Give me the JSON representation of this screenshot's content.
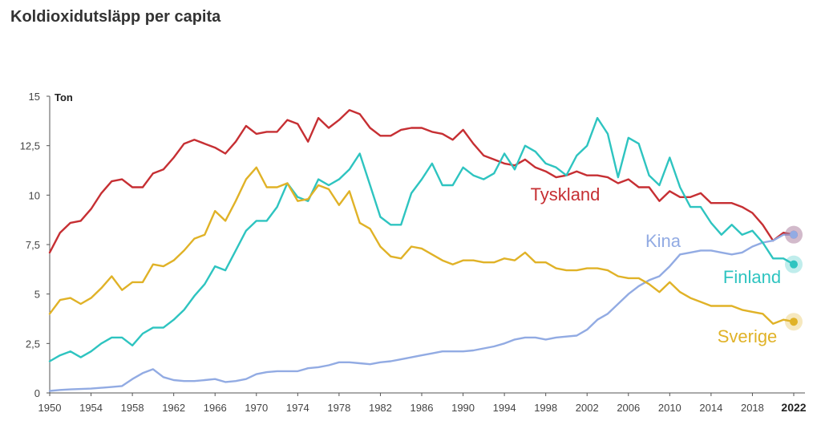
{
  "title": "Koldioxidutsläpp per capita",
  "chart_data": {
    "type": "line",
    "title": "Koldioxidutsläpp per capita",
    "ylabel": "Ton",
    "xlim": [
      1950,
      2022
    ],
    "ylim": [
      0,
      15
    ],
    "y_ticks": [
      {
        "value": 0,
        "label": "0"
      },
      {
        "value": 2.5,
        "label": "2,5"
      },
      {
        "value": 5,
        "label": "5"
      },
      {
        "value": 7.5,
        "label": "7,5"
      },
      {
        "value": 10,
        "label": "10"
      },
      {
        "value": 12.5,
        "label": "12,5"
      },
      {
        "value": 15,
        "label": "15"
      }
    ],
    "x_ticks": [
      {
        "value": 1950,
        "label": "1950"
      },
      {
        "value": 1954,
        "label": "1954"
      },
      {
        "value": 1958,
        "label": "1958"
      },
      {
        "value": 1962,
        "label": "1962"
      },
      {
        "value": 1966,
        "label": "1966"
      },
      {
        "value": 1970,
        "label": "1970"
      },
      {
        "value": 1974,
        "label": "1974"
      },
      {
        "value": 1978,
        "label": "1978"
      },
      {
        "value": 1982,
        "label": "1982"
      },
      {
        "value": 1986,
        "label": "1986"
      },
      {
        "value": 1990,
        "label": "1990"
      },
      {
        "value": 1994,
        "label": "1994"
      },
      {
        "value": 1998,
        "label": "1998"
      },
      {
        "value": 2002,
        "label": "2002"
      },
      {
        "value": 2006,
        "label": "2006"
      },
      {
        "value": 2010,
        "label": "2010"
      },
      {
        "value": 2014,
        "label": "2014"
      },
      {
        "value": 2018,
        "label": "2018"
      },
      {
        "value": 2022,
        "label": "2022",
        "bold": true
      }
    ],
    "grid": false,
    "legend": "direct labels at right",
    "x": [
      1950,
      1951,
      1952,
      1953,
      1954,
      1955,
      1956,
      1957,
      1958,
      1959,
      1960,
      1961,
      1962,
      1963,
      1964,
      1965,
      1966,
      1967,
      1968,
      1969,
      1970,
      1971,
      1972,
      1973,
      1974,
      1975,
      1976,
      1977,
      1978,
      1979,
      1980,
      1981,
      1982,
      1983,
      1984,
      1985,
      1986,
      1987,
      1988,
      1989,
      1990,
      1991,
      1992,
      1993,
      1994,
      1995,
      1996,
      1997,
      1998,
      1999,
      2000,
      2001,
      2002,
      2003,
      2004,
      2005,
      2006,
      2007,
      2008,
      2009,
      2010,
      2011,
      2012,
      2013,
      2014,
      2015,
      2016,
      2017,
      2018,
      2019,
      2020,
      2021,
      2022
    ],
    "series": [
      {
        "name": "Tyskland",
        "color": "#c62f33",
        "values": [
          7.1,
          8.1,
          8.6,
          8.7,
          9.3,
          10.1,
          10.7,
          10.8,
          10.4,
          10.4,
          11.1,
          11.3,
          11.9,
          12.6,
          12.8,
          12.6,
          12.4,
          12.1,
          12.7,
          13.5,
          13.1,
          13.2,
          13.2,
          13.8,
          13.6,
          12.7,
          13.9,
          13.4,
          13.8,
          14.3,
          14.1,
          13.4,
          13.0,
          13.0,
          13.3,
          13.4,
          13.4,
          13.2,
          13.1,
          12.8,
          13.3,
          12.6,
          12.0,
          11.8,
          11.6,
          11.5,
          11.8,
          11.4,
          11.2,
          10.9,
          11.0,
          11.2,
          11.0,
          11.0,
          10.9,
          10.6,
          10.8,
          10.4,
          10.4,
          9.7,
          10.2,
          9.9,
          9.9,
          10.1,
          9.6,
          9.6,
          9.6,
          9.4,
          9.1,
          8.5,
          7.7,
          8.1,
          8.0
        ]
      },
      {
        "name": "Kina",
        "color": "#92abe3",
        "values": [
          0.1,
          0.15,
          0.18,
          0.2,
          0.22,
          0.26,
          0.3,
          0.35,
          0.7,
          1.0,
          1.2,
          0.8,
          0.65,
          0.6,
          0.6,
          0.65,
          0.7,
          0.55,
          0.6,
          0.7,
          0.95,
          1.05,
          1.1,
          1.1,
          1.1,
          1.25,
          1.3,
          1.4,
          1.55,
          1.55,
          1.5,
          1.45,
          1.55,
          1.6,
          1.7,
          1.8,
          1.9,
          2.0,
          2.1,
          2.1,
          2.1,
          2.15,
          2.25,
          2.35,
          2.5,
          2.7,
          2.8,
          2.8,
          2.7,
          2.8,
          2.85,
          2.9,
          3.2,
          3.7,
          4.0,
          4.5,
          5.0,
          5.4,
          5.7,
          5.9,
          6.4,
          7.0,
          7.1,
          7.2,
          7.2,
          7.1,
          7.0,
          7.1,
          7.4,
          7.6,
          7.7,
          8.0,
          8.0
        ]
      },
      {
        "name": "Finland",
        "color": "#2ec4c0",
        "values": [
          1.6,
          1.9,
          2.1,
          1.8,
          2.1,
          2.5,
          2.8,
          2.8,
          2.4,
          3.0,
          3.3,
          3.3,
          3.7,
          4.2,
          4.9,
          5.5,
          6.4,
          6.2,
          7.2,
          8.2,
          8.7,
          8.7,
          9.4,
          10.6,
          9.9,
          9.7,
          10.8,
          10.5,
          10.8,
          11.3,
          12.1,
          10.5,
          8.9,
          8.5,
          8.5,
          10.1,
          10.8,
          11.6,
          10.5,
          10.5,
          11.4,
          11.0,
          10.8,
          11.1,
          12.1,
          11.3,
          12.5,
          12.2,
          11.6,
          11.4,
          11.0,
          12.0,
          12.5,
          13.9,
          13.1,
          10.9,
          12.9,
          12.6,
          11.0,
          10.5,
          11.9,
          10.4,
          9.4,
          9.4,
          8.6,
          8.0,
          8.5,
          8.0,
          8.2,
          7.6,
          6.8,
          6.8,
          6.5
        ]
      },
      {
        "name": "Sverige",
        "color": "#e0b227",
        "values": [
          4.0,
          4.7,
          4.8,
          4.5,
          4.8,
          5.3,
          5.9,
          5.2,
          5.6,
          5.6,
          6.5,
          6.4,
          6.7,
          7.2,
          7.8,
          8.0,
          9.2,
          8.7,
          9.7,
          10.8,
          11.4,
          10.4,
          10.4,
          10.6,
          9.7,
          9.8,
          10.5,
          10.3,
          9.5,
          10.2,
          8.6,
          8.3,
          7.4,
          6.9,
          6.8,
          7.4,
          7.3,
          7.0,
          6.7,
          6.5,
          6.7,
          6.7,
          6.6,
          6.6,
          6.8,
          6.7,
          7.1,
          6.6,
          6.6,
          6.3,
          6.2,
          6.2,
          6.3,
          6.3,
          6.2,
          5.9,
          5.8,
          5.8,
          5.5,
          5.1,
          5.6,
          5.1,
          4.8,
          4.6,
          4.4,
          4.4,
          4.4,
          4.2,
          4.1,
          4.0,
          3.5,
          3.7,
          3.6
        ]
      }
    ]
  }
}
